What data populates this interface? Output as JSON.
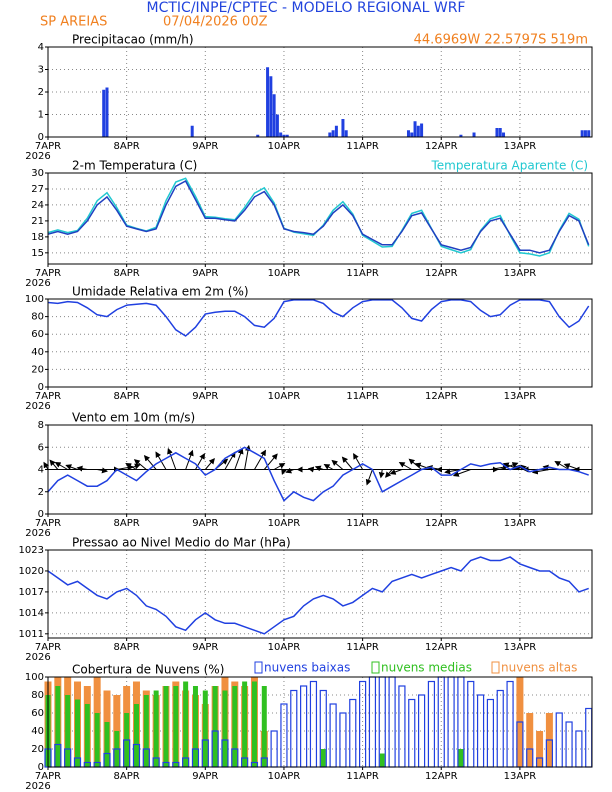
{
  "header": {
    "title": "MCTIC/INPE/CPTEC - MODELO REGIONAL WRF",
    "location": "SP AREIAS",
    "run": "07/04/2026 00Z",
    "coords": "44.6969W 22.5797S 519m"
  },
  "chart_data": [
    {
      "type": "bar",
      "title": "Precipitacao (mm/h)",
      "color": "#2040e0",
      "year": "2026",
      "x": [
        17,
        18,
        44,
        64,
        67,
        68,
        69,
        70,
        71,
        72,
        73,
        86,
        87,
        88,
        90,
        91,
        110,
        111,
        112,
        113,
        114,
        126,
        130,
        137,
        138,
        139,
        163,
        164,
        165
      ],
      "values": [
        2.1,
        2.2,
        0.5,
        0.1,
        3.1,
        2.7,
        1.9,
        1.0,
        0.2,
        0.1,
        0.1,
        0.2,
        0.3,
        0.5,
        0.8,
        0.3,
        0.3,
        0.2,
        0.7,
        0.5,
        0.6,
        0.1,
        0.2,
        0.4,
        0.4,
        0.2,
        0.3,
        0.3,
        0.3
      ],
      "xlim": [
        0,
        166
      ],
      "ylim": [
        0,
        4
      ],
      "yticks": [
        0,
        1,
        2,
        3,
        4
      ],
      "grid": true,
      "xticks": [
        {
          "value": 0,
          "label": "7APR"
        },
        {
          "value": 24,
          "label": "8APR"
        },
        {
          "value": 48,
          "label": "9APR"
        },
        {
          "value": 72,
          "label": "10APR"
        },
        {
          "value": 96,
          "label": "11APR"
        },
        {
          "value": 120,
          "label": "12APR"
        },
        {
          "value": 144,
          "label": "13APR"
        }
      ]
    },
    {
      "type": "line",
      "title": "2-m Temperatura (C)",
      "year": "2026",
      "x": [
        0,
        3,
        6,
        9,
        12,
        15,
        18,
        21,
        24,
        27,
        30,
        33,
        36,
        39,
        42,
        45,
        48,
        51,
        54,
        57,
        60,
        63,
        66,
        69,
        72,
        75,
        78,
        81,
        84,
        87,
        90,
        93,
        96,
        99,
        102,
        105,
        108,
        111,
        114,
        117,
        120,
        123,
        126,
        129,
        132,
        135,
        138,
        141,
        144,
        147,
        150,
        153,
        156,
        159,
        162,
        165
      ],
      "series": [
        {
          "name": "Temperatura Aparente (C)",
          "color": "#20c8d0",
          "values": [
            18.8,
            19.3,
            18.8,
            19.2,
            21.5,
            24.8,
            26.3,
            23.5,
            20.2,
            19.6,
            19.1,
            19.8,
            24.8,
            28.3,
            29,
            25.6,
            21.8,
            21.7,
            21.4,
            21.2,
            23.5,
            26.2,
            27.2,
            24.4,
            19.6,
            18.9,
            18.6,
            18.3,
            20.2,
            23,
            24.6,
            22.3,
            18.3,
            17.2,
            16.1,
            16.2,
            19.2,
            22.4,
            23,
            19.6,
            16.2,
            15.6,
            15,
            15.6,
            19.2,
            21.4,
            22,
            18.3,
            15,
            14.8,
            14.4,
            15,
            19.2,
            22.4,
            21.3,
            16.2
          ]
        },
        {
          "color": "#2040c0",
          "values": [
            18.5,
            19,
            18.5,
            19,
            21,
            24,
            25.5,
            23,
            20,
            19.5,
            19,
            19.5,
            24,
            27.5,
            28.5,
            25,
            21.5,
            21.5,
            21.2,
            21,
            23,
            25.5,
            26.5,
            24,
            19.5,
            19,
            18.8,
            18.5,
            20,
            22.5,
            24,
            22,
            18.5,
            17.5,
            16.5,
            16.5,
            19,
            22,
            22.5,
            19.5,
            16.5,
            16,
            15.5,
            16,
            19,
            21,
            21.5,
            18.5,
            15.5,
            15.5,
            15,
            15.5,
            19,
            22,
            21,
            16.5
          ]
        }
      ],
      "xlim": [
        0,
        166
      ],
      "ylim": [
        12.9,
        30
      ],
      "yticks": [
        15,
        18,
        21,
        24,
        27,
        30
      ],
      "grid": true,
      "xticks": [
        {
          "value": 0,
          "label": "7APR"
        },
        {
          "value": 24,
          "label": "8APR"
        },
        {
          "value": 48,
          "label": "9APR"
        },
        {
          "value": 72,
          "label": "10APR"
        },
        {
          "value": 96,
          "label": "11APR"
        },
        {
          "value": 120,
          "label": "12APR"
        },
        {
          "value": 144,
          "label": "13APR"
        }
      ]
    },
    {
      "type": "line",
      "title": "Umidade Relativa em 2m (%)",
      "year": "2026",
      "x": [
        0,
        3,
        6,
        9,
        12,
        15,
        18,
        21,
        24,
        27,
        30,
        33,
        36,
        39,
        42,
        45,
        48,
        51,
        54,
        57,
        60,
        63,
        66,
        69,
        72,
        75,
        78,
        81,
        84,
        87,
        90,
        93,
        96,
        99,
        102,
        105,
        108,
        111,
        114,
        117,
        120,
        123,
        126,
        129,
        132,
        135,
        138,
        141,
        144,
        147,
        150,
        153,
        156,
        159,
        162,
        165
      ],
      "series": [
        {
          "color": "#2040e0",
          "values": [
            96,
            95,
            97,
            96,
            90,
            82,
            80,
            88,
            93,
            94,
            95,
            93,
            80,
            65,
            58,
            68,
            83,
            85,
            86,
            86,
            80,
            70,
            68,
            78,
            97,
            99,
            99,
            99,
            95,
            85,
            80,
            90,
            97,
            99,
            99,
            99,
            90,
            78,
            75,
            88,
            97,
            99,
            99,
            97,
            87,
            80,
            82,
            93,
            99,
            99,
            99,
            97,
            80,
            68,
            75,
            92
          ]
        }
      ],
      "xlim": [
        0,
        166
      ],
      "ylim": [
        0,
        100
      ],
      "yticks": [
        0,
        20,
        40,
        60,
        80,
        100
      ],
      "grid": true,
      "xticks": [
        {
          "value": 0,
          "label": "7APR"
        },
        {
          "value": 24,
          "label": "8APR"
        },
        {
          "value": 48,
          "label": "9APR"
        },
        {
          "value": 72,
          "label": "10APR"
        },
        {
          "value": 96,
          "label": "11APR"
        },
        {
          "value": 120,
          "label": "12APR"
        },
        {
          "value": 144,
          "label": "13APR"
        }
      ]
    },
    {
      "type": "wind",
      "title": "Vento em 10m (m/s)",
      "year": "2026",
      "color": "#2040e0",
      "x": [
        0,
        3,
        6,
        9,
        12,
        15,
        18,
        21,
        24,
        27,
        30,
        33,
        36,
        39,
        42,
        45,
        48,
        51,
        54,
        57,
        60,
        63,
        66,
        69,
        72,
        75,
        78,
        81,
        84,
        87,
        90,
        93,
        96,
        99,
        102,
        105,
        108,
        111,
        114,
        117,
        120,
        123,
        126,
        129,
        132,
        135,
        138,
        141,
        144,
        147,
        150,
        153,
        156,
        159,
        162,
        165
      ],
      "values": [
        2,
        3,
        3.5,
        3,
        2.5,
        2.5,
        3,
        4,
        3.5,
        3,
        3.8,
        4.5,
        5,
        5.5,
        5,
        4.5,
        3.5,
        4,
        5,
        5.5,
        6,
        5.5,
        5,
        3,
        1.2,
        2,
        1.5,
        1.2,
        2,
        2.5,
        3.5,
        4,
        4.5,
        4,
        2,
        2.5,
        3,
        3.5,
        4,
        4.2,
        3.5,
        3.5,
        4,
        4.5,
        4.3,
        4.5,
        4.6,
        4,
        4.3,
        3.8,
        4,
        4.2,
        4,
        4,
        3.8,
        3.5
      ],
      "direction": [
        330,
        320,
        300,
        290,
        280,
        100,
        90,
        80,
        70,
        300,
        310,
        320,
        330,
        340,
        20,
        30,
        40,
        50,
        30,
        20,
        10,
        30,
        40,
        60,
        200,
        250,
        270,
        280,
        290,
        300,
        310,
        320,
        330,
        200,
        190,
        220,
        250,
        300,
        310,
        290,
        280,
        270,
        260,
        250,
        90,
        80,
        70,
        80,
        290,
        280,
        270,
        260,
        280,
        300,
        290,
        270
      ],
      "xlim": [
        0,
        166
      ],
      "ylim": [
        0,
        8
      ],
      "yticks": [
        0,
        2,
        4,
        6,
        8
      ],
      "grid": true,
      "xticks": [
        {
          "value": 0,
          "label": "7APR"
        },
        {
          "value": 24,
          "label": "8APR"
        },
        {
          "value": 48,
          "label": "9APR"
        },
        {
          "value": 72,
          "label": "10APR"
        },
        {
          "value": 96,
          "label": "11APR"
        },
        {
          "value": 120,
          "label": "12APR"
        },
        {
          "value": 144,
          "label": "13APR"
        }
      ]
    },
    {
      "type": "line",
      "title": "Pressao ao Nivel Medio do Mar (hPa)",
      "year": "2026",
      "x": [
        0,
        3,
        6,
        9,
        12,
        15,
        18,
        21,
        24,
        27,
        30,
        33,
        36,
        39,
        42,
        45,
        48,
        51,
        54,
        57,
        60,
        63,
        66,
        69,
        72,
        75,
        78,
        81,
        84,
        87,
        90,
        93,
        96,
        99,
        102,
        105,
        108,
        111,
        114,
        117,
        120,
        123,
        126,
        129,
        132,
        135,
        138,
        141,
        144,
        147,
        150,
        153,
        156,
        159,
        162,
        165
      ],
      "series": [
        {
          "color": "#2040e0",
          "values": [
            1020,
            1019,
            1018,
            1018.5,
            1017.5,
            1016.5,
            1016,
            1017,
            1017.5,
            1016.5,
            1015,
            1014.5,
            1013.5,
            1012,
            1011.5,
            1013,
            1014,
            1013,
            1012.5,
            1012.5,
            1012,
            1011.5,
            1011,
            1012,
            1013,
            1013.5,
            1015,
            1016,
            1016.5,
            1016,
            1015,
            1015.5,
            1016.5,
            1017.5,
            1017,
            1018.5,
            1019,
            1019.5,
            1019,
            1019.5,
            1020,
            1020.5,
            1020,
            1021.5,
            1022,
            1021.5,
            1021.5,
            1022,
            1021,
            1020.5,
            1020,
            1020,
            1019,
            1018.5,
            1017,
            1017.5
          ]
        }
      ],
      "xlim": [
        0,
        166
      ],
      "ylim": [
        1010.4,
        1023
      ],
      "yticks": [
        1011,
        1014,
        1017,
        1020,
        1023
      ],
      "grid": true,
      "xticks": [
        {
          "value": 0,
          "label": "7APR"
        },
        {
          "value": 24,
          "label": "8APR"
        },
        {
          "value": 48,
          "label": "9APR"
        },
        {
          "value": 72,
          "label": "10APR"
        },
        {
          "value": 96,
          "label": "11APR"
        },
        {
          "value": 120,
          "label": "12APR"
        },
        {
          "value": 144,
          "label": "13APR"
        }
      ]
    },
    {
      "type": "cloud",
      "title": "Cobertura de Nuvens (%)",
      "year": "2026",
      "x": [
        0,
        3,
        6,
        9,
        12,
        15,
        18,
        21,
        24,
        27,
        30,
        33,
        36,
        39,
        42,
        45,
        48,
        51,
        54,
        57,
        60,
        63,
        66,
        69,
        72,
        75,
        78,
        81,
        84,
        87,
        90,
        93,
        96,
        99,
        102,
        105,
        108,
        111,
        114,
        117,
        120,
        123,
        126,
        129,
        132,
        135,
        138,
        141,
        144,
        147,
        150,
        153,
        156,
        159,
        162,
        165
      ],
      "series": [
        {
          "name": "nuvens baixas",
          "color": "#2040e0",
          "style": "outline",
          "values": [
            20,
            25,
            20,
            10,
            5,
            5,
            15,
            20,
            30,
            25,
            20,
            10,
            5,
            5,
            10,
            20,
            30,
            40,
            30,
            20,
            10,
            5,
            10,
            40,
            70,
            85,
            90,
            95,
            85,
            70,
            60,
            75,
            95,
            100,
            100,
            100,
            90,
            75,
            80,
            95,
            100,
            100,
            100,
            95,
            80,
            75,
            85,
            95,
            50,
            20,
            10,
            30,
            60,
            50,
            40,
            65
          ]
        },
        {
          "name": "nuvens medias",
          "color": "#30c020",
          "style": "filled",
          "values": [
            80,
            90,
            80,
            75,
            70,
            60,
            50,
            40,
            60,
            70,
            80,
            85,
            90,
            90,
            95,
            90,
            85,
            90,
            85,
            90,
            95,
            95,
            90,
            0,
            0,
            0,
            0,
            0,
            20,
            0,
            0,
            0,
            0,
            0,
            15,
            0,
            0,
            0,
            0,
            0,
            0,
            0,
            20,
            0,
            0,
            0,
            0,
            0,
            0,
            0,
            0,
            0,
            0,
            0,
            0,
            0
          ]
        },
        {
          "name": "nuvens altas",
          "color": "#f09040",
          "style": "filled",
          "values": [
            95,
            100,
            100,
            95,
            90,
            100,
            85,
            80,
            90,
            95,
            85,
            80,
            90,
            95,
            85,
            80,
            70,
            90,
            100,
            95,
            90,
            100,
            40,
            0,
            0,
            0,
            0,
            0,
            0,
            0,
            0,
            0,
            0,
            0,
            0,
            0,
            0,
            0,
            0,
            0,
            0,
            0,
            0,
            0,
            0,
            0,
            0,
            0,
            100,
            60,
            40,
            60,
            0,
            0,
            0,
            0
          ]
        }
      ],
      "xlim": [
        0,
        166
      ],
      "ylim": [
        0,
        100
      ],
      "yticks": [
        0,
        20,
        40,
        60,
        80,
        100
      ],
      "grid": true,
      "xticks": [
        {
          "value": 0,
          "label": "7APR"
        },
        {
          "value": 24,
          "label": "8APR"
        },
        {
          "value": 48,
          "label": "9APR"
        },
        {
          "value": 72,
          "label": "10APR"
        },
        {
          "value": 96,
          "label": "11APR"
        },
        {
          "value": 120,
          "label": "12APR"
        },
        {
          "value": 144,
          "label": "13APR"
        }
      ]
    }
  ]
}
